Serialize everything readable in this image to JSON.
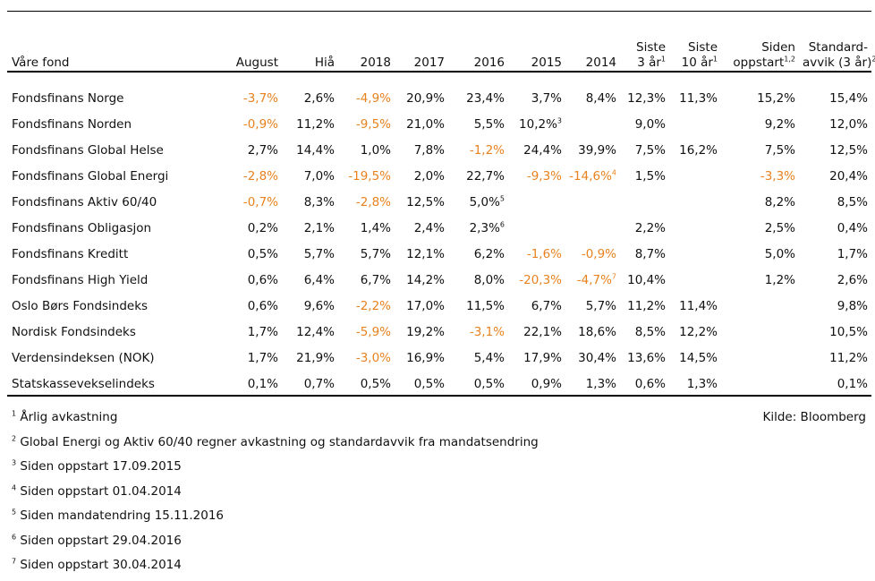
{
  "table": {
    "headers": [
      {
        "key": "name",
        "lines": [
          "Våre fond"
        ],
        "sup": ""
      },
      {
        "key": "august",
        "lines": [
          "August"
        ],
        "sup": ""
      },
      {
        "key": "hia",
        "lines": [
          "Hiå"
        ],
        "sup": ""
      },
      {
        "key": "y2018",
        "lines": [
          "2018"
        ],
        "sup": ""
      },
      {
        "key": "y2017",
        "lines": [
          "2017"
        ],
        "sup": ""
      },
      {
        "key": "y2016",
        "lines": [
          "2016"
        ],
        "sup": ""
      },
      {
        "key": "y2015",
        "lines": [
          "2015"
        ],
        "sup": ""
      },
      {
        "key": "y2014",
        "lines": [
          "2014"
        ],
        "sup": ""
      },
      {
        "key": "siste3",
        "lines": [
          "Siste",
          "3 år"
        ],
        "sup": "1"
      },
      {
        "key": "siste10",
        "lines": [
          "Siste",
          "10 år"
        ],
        "sup": "1"
      },
      {
        "key": "siden",
        "lines": [
          "Siden",
          "oppstart"
        ],
        "sup": "1,2"
      },
      {
        "key": "std",
        "lines": [
          "Standard-",
          "avvik (3 år)"
        ],
        "sup": "2"
      }
    ],
    "rows": [
      {
        "name": "Fondsfinans Norge",
        "cells": [
          {
            "v": "-3,7%",
            "neg": true
          },
          {
            "v": "2,6%"
          },
          {
            "v": "-4,9%",
            "neg": true
          },
          {
            "v": "20,9%"
          },
          {
            "v": "23,4%"
          },
          {
            "v": "3,7%"
          },
          {
            "v": "8,4%"
          },
          {
            "v": "12,3%"
          },
          {
            "v": "11,3%"
          },
          {
            "v": "15,2%"
          },
          {
            "v": "15,4%"
          }
        ]
      },
      {
        "name": "Fondsfinans Norden",
        "cells": [
          {
            "v": "-0,9%",
            "neg": true
          },
          {
            "v": "11,2%"
          },
          {
            "v": "-9,5%",
            "neg": true
          },
          {
            "v": "21,0%"
          },
          {
            "v": "5,5%"
          },
          {
            "v": "10,2%",
            "sup": "3"
          },
          {
            "v": ""
          },
          {
            "v": "9,0%"
          },
          {
            "v": ""
          },
          {
            "v": "9,2%"
          },
          {
            "v": "12,0%"
          }
        ]
      },
      {
        "name": "Fondsfinans Global Helse",
        "cells": [
          {
            "v": "2,7%"
          },
          {
            "v": "14,4%"
          },
          {
            "v": "1,0%"
          },
          {
            "v": "7,8%"
          },
          {
            "v": "-1,2%",
            "neg": true
          },
          {
            "v": "24,4%"
          },
          {
            "v": "39,9%"
          },
          {
            "v": "7,5%"
          },
          {
            "v": "16,2%"
          },
          {
            "v": "7,5%"
          },
          {
            "v": "12,5%"
          }
        ]
      },
      {
        "name": "Fondsfinans Global Energi",
        "cells": [
          {
            "v": "-2,8%",
            "neg": true
          },
          {
            "v": "7,0%"
          },
          {
            "v": "-19,5%",
            "neg": true
          },
          {
            "v": "2,0%"
          },
          {
            "v": "22,7%"
          },
          {
            "v": "-9,3%",
            "neg": true
          },
          {
            "v": "-14,6%",
            "neg": true,
            "sup": "4"
          },
          {
            "v": "1,5%"
          },
          {
            "v": ""
          },
          {
            "v": "-3,3%",
            "neg": true
          },
          {
            "v": "20,4%"
          }
        ]
      },
      {
        "name": "Fondsfinans Aktiv 60/40",
        "cells": [
          {
            "v": "-0,7%",
            "neg": true
          },
          {
            "v": "8,3%"
          },
          {
            "v": "-2,8%",
            "neg": true
          },
          {
            "v": "12,5%"
          },
          {
            "v": "5,0%",
            "sup": "5"
          },
          {
            "v": ""
          },
          {
            "v": ""
          },
          {
            "v": ""
          },
          {
            "v": ""
          },
          {
            "v": "8,2%"
          },
          {
            "v": "8,5%"
          }
        ]
      },
      {
        "name": "Fondsfinans Obligasjon",
        "cells": [
          {
            "v": "0,2%"
          },
          {
            "v": "2,1%"
          },
          {
            "v": "1,4%"
          },
          {
            "v": "2,4%"
          },
          {
            "v": "2,3%",
            "sup": "6"
          },
          {
            "v": ""
          },
          {
            "v": ""
          },
          {
            "v": "2,2%"
          },
          {
            "v": ""
          },
          {
            "v": "2,5%"
          },
          {
            "v": "0,4%"
          }
        ]
      },
      {
        "name": "Fondsfinans Kreditt",
        "cells": [
          {
            "v": "0,5%"
          },
          {
            "v": "5,7%"
          },
          {
            "v": "5,7%"
          },
          {
            "v": "12,1%"
          },
          {
            "v": "6,2%"
          },
          {
            "v": "-1,6%",
            "neg": true
          },
          {
            "v": "-0,9%",
            "neg": true
          },
          {
            "v": "8,7%"
          },
          {
            "v": ""
          },
          {
            "v": "5,0%"
          },
          {
            "v": "1,7%"
          }
        ]
      },
      {
        "name": "Fondsfinans High Yield",
        "cells": [
          {
            "v": "0,6%"
          },
          {
            "v": "6,4%"
          },
          {
            "v": "6,7%"
          },
          {
            "v": "14,2%"
          },
          {
            "v": "8,0%"
          },
          {
            "v": "-20,3%",
            "neg": true
          },
          {
            "v": "-4,7%",
            "neg": true,
            "sup": "7"
          },
          {
            "v": "10,4%"
          },
          {
            "v": ""
          },
          {
            "v": "1,2%"
          },
          {
            "v": "2,6%"
          }
        ]
      },
      {
        "name": "Oslo Børs Fondsindeks",
        "cells": [
          {
            "v": "0,6%"
          },
          {
            "v": "9,6%"
          },
          {
            "v": "-2,2%",
            "neg": true
          },
          {
            "v": "17,0%"
          },
          {
            "v": "11,5%"
          },
          {
            "v": "6,7%"
          },
          {
            "v": "5,7%"
          },
          {
            "v": "11,2%"
          },
          {
            "v": "11,4%"
          },
          {
            "v": ""
          },
          {
            "v": "9,8%"
          }
        ]
      },
      {
        "name": "Nordisk Fondsindeks",
        "cells": [
          {
            "v": "1,7%"
          },
          {
            "v": "12,4%"
          },
          {
            "v": "-5,9%",
            "neg": true
          },
          {
            "v": "19,2%"
          },
          {
            "v": "-3,1%",
            "neg": true
          },
          {
            "v": "22,1%"
          },
          {
            "v": "18,6%"
          },
          {
            "v": "8,5%"
          },
          {
            "v": "12,2%"
          },
          {
            "v": ""
          },
          {
            "v": "10,5%"
          }
        ]
      },
      {
        "name": "Verdensindeksen (NOK)",
        "cells": [
          {
            "v": "1,7%"
          },
          {
            "v": "21,9%"
          },
          {
            "v": "-3,0%",
            "neg": true
          },
          {
            "v": "16,9%"
          },
          {
            "v": "5,4%"
          },
          {
            "v": "17,9%"
          },
          {
            "v": "30,4%"
          },
          {
            "v": "13,6%"
          },
          {
            "v": "14,5%"
          },
          {
            "v": ""
          },
          {
            "v": "11,2%"
          }
        ]
      },
      {
        "name": "Statskassevekselindeks",
        "cells": [
          {
            "v": "0,1%"
          },
          {
            "v": "0,7%"
          },
          {
            "v": "0,5%"
          },
          {
            "v": "0,5%"
          },
          {
            "v": "0,5%"
          },
          {
            "v": "0,9%"
          },
          {
            "v": "1,3%"
          },
          {
            "v": "0,6%"
          },
          {
            "v": "1,3%"
          },
          {
            "v": ""
          },
          {
            "v": "0,1%"
          }
        ]
      }
    ]
  },
  "footnotes": [
    {
      "num": "1",
      "text": "Årlig avkastning"
    },
    {
      "num": "2",
      "text": "Global Energi og Aktiv 60/40 regner avkastning og standardavvik fra mandatsendring"
    },
    {
      "num": "3",
      "text": "Siden oppstart 17.09.2015"
    },
    {
      "num": "4",
      "text": "Siden oppstart 01.04.2014"
    },
    {
      "num": "5",
      "text": "Siden mandatendring 15.11.2016"
    },
    {
      "num": "6",
      "text": "Siden oppstart 29.04.2016"
    },
    {
      "num": "7",
      "text": "Siden oppstart 30.04.2014"
    }
  ],
  "source": "Kilde: Bloomberg",
  "colors": {
    "negative": "#e8821e",
    "text": "#111111",
    "rule": "#000000"
  }
}
